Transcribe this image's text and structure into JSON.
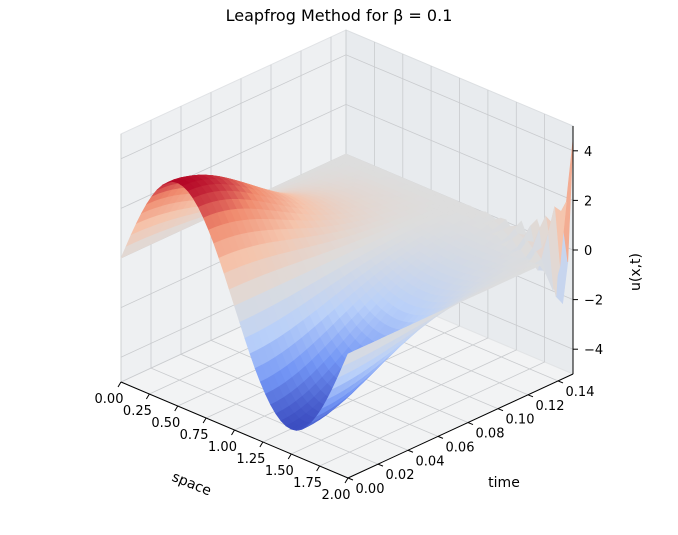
{
  "chart_data": {
    "type": "surface3d",
    "title": "Leapfrog Method for β = 0.1",
    "xlabel": "space",
    "ylabel": "time",
    "zlabel": "u(x,t)",
    "xlim": [
      0,
      2
    ],
    "ylim": [
      0,
      0.15
    ],
    "zlim": [
      -5,
      5
    ],
    "xticks": [
      "0.00",
      "0.25",
      "0.50",
      "0.75",
      "1.00",
      "1.25",
      "1.50",
      "1.75",
      "2.00"
    ],
    "yticks": [
      "0.00",
      "0.02",
      "0.04",
      "0.06",
      "0.08",
      "0.10",
      "0.12",
      "0.14"
    ],
    "zticks": [
      "−4",
      "−2",
      "0",
      "2",
      "4"
    ],
    "colormap": [
      "#3b4cc0",
      "#7396f5",
      "#b9d0f9",
      "#dddddd",
      "#f5c4ac",
      "#f08b6e",
      "#b40426"
    ],
    "surface": {
      "x_range": [
        0,
        2
      ],
      "t_range": [
        0,
        0.15
      ],
      "initial_amplitude": 4,
      "initial_profile": "4*sin(pi*x)",
      "late_time_value": 0,
      "noise_onset_time": 0.13,
      "noise_amplitude": 4.5
    },
    "grid": true
  }
}
